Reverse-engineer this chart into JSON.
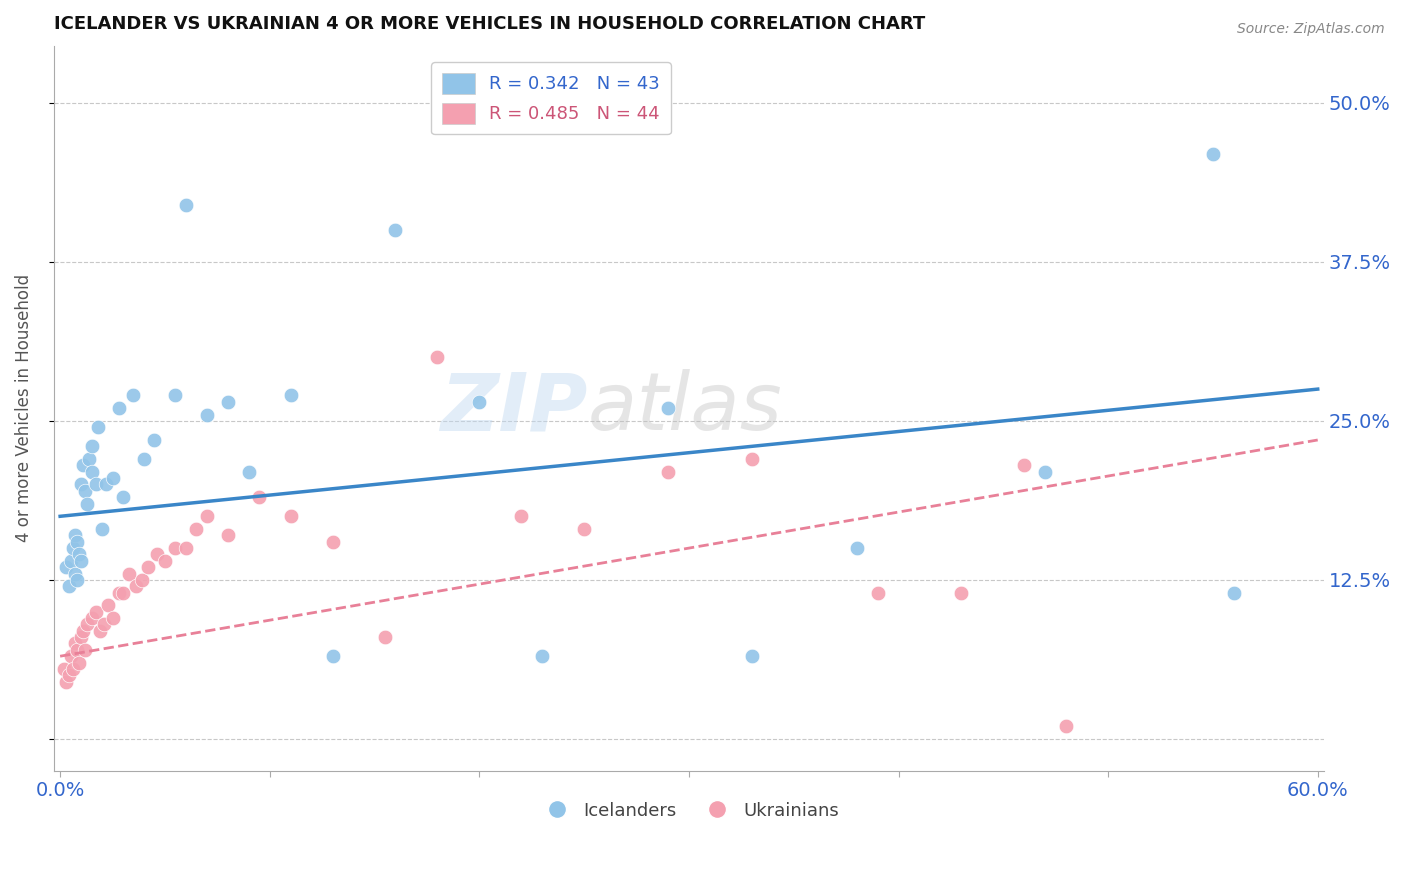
{
  "title": "ICELANDER VS UKRAINIAN 4 OR MORE VEHICLES IN HOUSEHOLD CORRELATION CHART",
  "source": "Source: ZipAtlas.com",
  "ylabel": "4 or more Vehicles in Household",
  "xlim": [
    0.0,
    0.6
  ],
  "ylim": [
    -0.025,
    0.545
  ],
  "xticks": [
    0.0,
    0.1,
    0.2,
    0.3,
    0.4,
    0.5,
    0.6
  ],
  "xticklabels": [
    "0.0%",
    "",
    "",
    "",
    "",
    "",
    "60.0%"
  ],
  "ytick_positions": [
    0.0,
    0.125,
    0.25,
    0.375,
    0.5
  ],
  "ytick_labels": [
    "",
    "12.5%",
    "25.0%",
    "37.5%",
    "50.0%"
  ],
  "icelander_color": "#91c4e8",
  "ukrainian_color": "#f4a0b0",
  "icelander_line_color": "#3a86c8",
  "ukrainian_line_color": "#e88098",
  "background_color": "#ffffff",
  "grid_color": "#c8c8c8",
  "icelander_x": [
    0.003,
    0.004,
    0.005,
    0.006,
    0.007,
    0.007,
    0.008,
    0.008,
    0.009,
    0.01,
    0.01,
    0.011,
    0.012,
    0.013,
    0.014,
    0.015,
    0.015,
    0.017,
    0.018,
    0.02,
    0.022,
    0.025,
    0.028,
    0.03,
    0.035,
    0.04,
    0.045,
    0.055,
    0.06,
    0.07,
    0.08,
    0.09,
    0.11,
    0.13,
    0.16,
    0.2,
    0.23,
    0.29,
    0.33,
    0.38,
    0.47,
    0.55,
    0.56
  ],
  "icelander_y": [
    0.135,
    0.12,
    0.14,
    0.15,
    0.13,
    0.16,
    0.125,
    0.155,
    0.145,
    0.14,
    0.2,
    0.215,
    0.195,
    0.185,
    0.22,
    0.21,
    0.23,
    0.2,
    0.245,
    0.165,
    0.2,
    0.205,
    0.26,
    0.19,
    0.27,
    0.22,
    0.235,
    0.27,
    0.42,
    0.255,
    0.265,
    0.21,
    0.27,
    0.065,
    0.4,
    0.265,
    0.065,
    0.26,
    0.065,
    0.15,
    0.21,
    0.46,
    0.115
  ],
  "ukrainian_x": [
    0.002,
    0.003,
    0.004,
    0.005,
    0.006,
    0.007,
    0.008,
    0.009,
    0.01,
    0.011,
    0.012,
    0.013,
    0.015,
    0.017,
    0.019,
    0.021,
    0.023,
    0.025,
    0.028,
    0.03,
    0.033,
    0.036,
    0.039,
    0.042,
    0.046,
    0.05,
    0.055,
    0.06,
    0.065,
    0.07,
    0.08,
    0.095,
    0.11,
    0.13,
    0.155,
    0.18,
    0.22,
    0.25,
    0.29,
    0.33,
    0.39,
    0.43,
    0.46,
    0.48
  ],
  "ukrainian_y": [
    0.055,
    0.045,
    0.05,
    0.065,
    0.055,
    0.075,
    0.07,
    0.06,
    0.08,
    0.085,
    0.07,
    0.09,
    0.095,
    0.1,
    0.085,
    0.09,
    0.105,
    0.095,
    0.115,
    0.115,
    0.13,
    0.12,
    0.125,
    0.135,
    0.145,
    0.14,
    0.15,
    0.15,
    0.165,
    0.175,
    0.16,
    0.19,
    0.175,
    0.155,
    0.08,
    0.3,
    0.175,
    0.165,
    0.21,
    0.22,
    0.115,
    0.115,
    0.215,
    0.01
  ],
  "ice_line_x0": 0.0,
  "ice_line_y0": 0.175,
  "ice_line_x1": 0.6,
  "ice_line_y1": 0.275,
  "ukr_line_x0": 0.0,
  "ukr_line_y0": 0.065,
  "ukr_line_x1": 0.6,
  "ukr_line_y1": 0.235
}
